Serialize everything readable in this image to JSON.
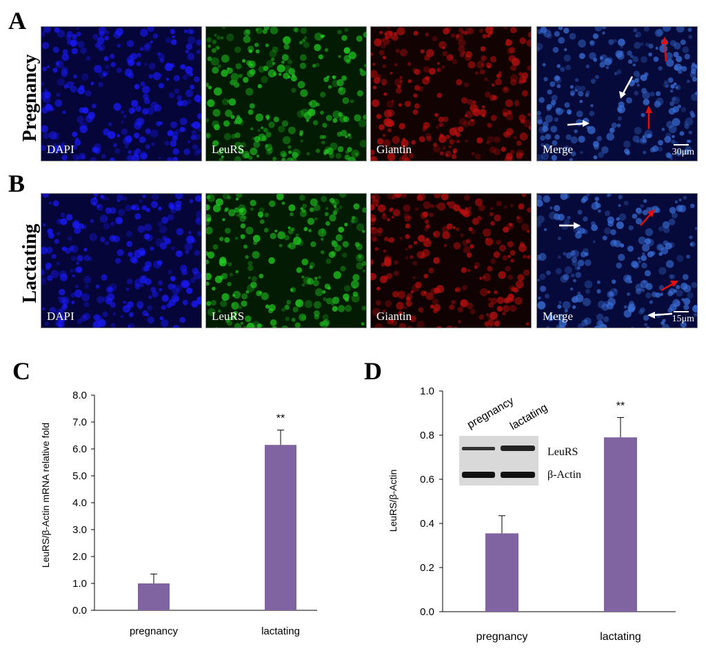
{
  "panels": {
    "A": {
      "letter": "A",
      "row_label": "Pregnancy",
      "scale_bar": "30μm"
    },
    "B": {
      "letter": "B",
      "row_label": "Lactating",
      "scale_bar": "15μm"
    },
    "C": {
      "letter": "C"
    },
    "D": {
      "letter": "D"
    }
  },
  "channels": [
    "DAPI",
    "LeuRS",
    "Giantin",
    "Merge"
  ],
  "channel_colors": {
    "DAPI": "#1a1aff",
    "LeuRS": "#22cc22",
    "Giantin": "#bb1010",
    "Merge": "#3a6fd8"
  },
  "arrow_colors": {
    "white": "#ffffff",
    "red": "#e01010"
  },
  "bar_color": "#8064a2",
  "blot": {
    "lanes": [
      "pregnancy",
      "lactating"
    ],
    "bands": [
      "LeuRS",
      "β-Actin"
    ]
  },
  "chart_data": [
    {
      "type": "bar",
      "panel": "C",
      "categories": [
        "pregnancy",
        "lactating"
      ],
      "values": [
        1.0,
        6.15
      ],
      "errors": [
        0.35,
        0.55
      ],
      "significance": [
        "",
        "**"
      ],
      "ylabel": "LeuRS/β-Actin mRNA relative fold",
      "ylim": [
        0,
        8
      ],
      "yticks": [
        "0.0",
        "1.0",
        "2.0",
        "3.0",
        "4.0",
        "5.0",
        "6.0",
        "7.0",
        "8.0"
      ],
      "grid": false
    },
    {
      "type": "bar",
      "panel": "D",
      "categories": [
        "pregnancy",
        "lactating"
      ],
      "values": [
        0.355,
        0.79
      ],
      "errors": [
        0.08,
        0.09
      ],
      "significance": [
        "",
        "**"
      ],
      "ylabel": "LeuRS/β-Actin",
      "ylim": [
        0,
        1
      ],
      "yticks": [
        "0.0",
        "0.2",
        "0.4",
        "0.6",
        "0.8",
        "1.0"
      ],
      "grid": false
    }
  ]
}
